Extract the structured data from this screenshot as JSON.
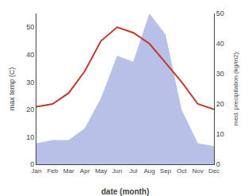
{
  "chart_data": {
    "type": "line",
    "categories": [
      "Jan",
      "Feb",
      "Mar",
      "Apr",
      "May",
      "Jun",
      "Jul",
      "Aug",
      "Sep",
      "Oct",
      "Nov",
      "Dec"
    ],
    "xlabel": "date (month)",
    "ylabel": "max temp (C)",
    "y2label": "med. precipitation (kg/m2)",
    "series": [
      {
        "type": "area",
        "axis": "y2",
        "color": "#b8c0e8",
        "values": [
          7,
          8,
          8,
          12,
          22,
          36,
          34,
          50,
          43,
          18,
          7,
          6
        ]
      },
      {
        "type": "line",
        "color": "#c0392b",
        "values": [
          21,
          22,
          26,
          34,
          45,
          50,
          48,
          44,
          37,
          30,
          22,
          20
        ]
      }
    ],
    "ylim": [
      0,
      55
    ],
    "yticks": [
      0,
      10,
      20,
      30,
      40,
      50
    ],
    "y2lim": [
      0,
      50
    ],
    "y2ticks": [
      0,
      10,
      20,
      30,
      40,
      50
    ],
    "grid": false
  }
}
